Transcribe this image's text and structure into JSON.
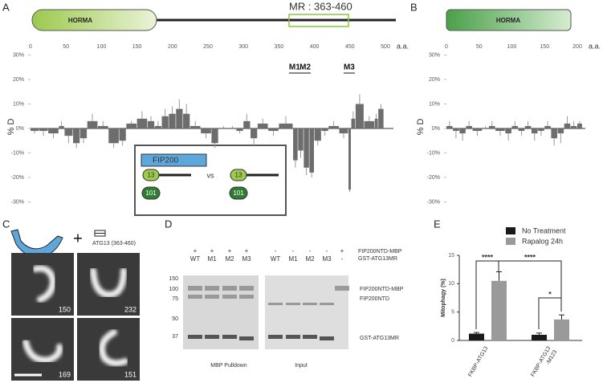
{
  "panel_a": {
    "label": "A",
    "domain": "HORMA",
    "region_label": "MR : 363-460",
    "xlim": [
      0,
      500
    ],
    "xticks": [
      0,
      50,
      100,
      150,
      200,
      250,
      300,
      350,
      400,
      450,
      500
    ],
    "x_unit": "a.a.",
    "ylim": [
      -30,
      30
    ],
    "yticks": [
      {
        "value": 30,
        "label": "30%"
      },
      {
        "value": 20,
        "label": "20%"
      },
      {
        "value": 10,
        "label": "10%"
      },
      {
        "value": 0,
        "label": "0%"
      },
      {
        "value": -10,
        "label": "-10%"
      },
      {
        "value": -20,
        "label": "-20%"
      },
      {
        "value": -30,
        "label": "-30%"
      }
    ],
    "y_label": "% D",
    "motifs": [
      "M1",
      "M2",
      "M3"
    ],
    "bar_starts": [
      0,
      12,
      25,
      40,
      48,
      60,
      70,
      80,
      95,
      110,
      125,
      135,
      150,
      165,
      175,
      185,
      195,
      205,
      215,
      225,
      240,
      255,
      265,
      280,
      290,
      300,
      310,
      320,
      335,
      350,
      370,
      377,
      385,
      393,
      400,
      410,
      420,
      435,
      448,
      452,
      458,
      470,
      485,
      490
    ],
    "values": [
      -1,
      -1,
      -2,
      1,
      -3,
      -6,
      -4,
      3,
      1,
      -6,
      -5,
      2,
      4,
      3,
      1,
      5,
      6,
      8,
      6,
      1,
      -2,
      -6,
      0,
      0,
      -1,
      3,
      -4,
      2,
      -1,
      2,
      -13,
      -9,
      -16,
      -18,
      -5,
      -1,
      1,
      -2,
      -25,
      4,
      10,
      3,
      4,
      8
    ],
    "errors": [
      1,
      2,
      2,
      2,
      3,
      2,
      2,
      3,
      2,
      2,
      2,
      1,
      3,
      2,
      2,
      3,
      3,
      4,
      4,
      2,
      2,
      2,
      1,
      1,
      1,
      3,
      3,
      2,
      2,
      3,
      3,
      3,
      3,
      2,
      2,
      2,
      2,
      2,
      1,
      3,
      4,
      2,
      2,
      2
    ],
    "inset": {
      "title": "FIP200",
      "pill_a": "13",
      "vs": "vs",
      "pill_b": "13",
      "circle_a": "101",
      "circle_b": "101"
    }
  },
  "panel_b": {
    "label": "B",
    "domain": "HORMA",
    "xlim": [
      0,
      200
    ],
    "xticks": [
      0,
      50,
      100,
      150,
      200
    ],
    "x_unit": "a.a.",
    "ylim": [
      -30,
      30
    ],
    "yticks": [
      {
        "value": 30,
        "label": "30%"
      },
      {
        "value": 20,
        "label": "20%"
      },
      {
        "value": 10,
        "label": "10%"
      },
      {
        "value": 0,
        "label": "0%"
      },
      {
        "value": -10,
        "label": "-10%"
      },
      {
        "value": -20,
        "label": "-20%"
      },
      {
        "value": -30,
        "label": "-30%"
      }
    ],
    "y_label": "% D",
    "bar_starts": [
      0,
      10,
      20,
      30,
      40,
      55,
      65,
      75,
      90,
      100,
      110,
      120,
      130,
      140,
      150,
      160,
      170,
      180,
      190,
      200
    ],
    "values": [
      1,
      -1,
      -2,
      1,
      -1,
      0,
      1,
      -1,
      -2,
      1,
      -1,
      1,
      -2,
      -1,
      1,
      -4,
      -2,
      2,
      1,
      2
    ],
    "errors": [
      2,
      3,
      3,
      2,
      2,
      1,
      2,
      2,
      3,
      2,
      2,
      2,
      3,
      2,
      2,
      3,
      4,
      3,
      2,
      1
    ]
  },
  "panel_c": {
    "label": "C",
    "plus": "+",
    "construct": "ATG13 (363-460)",
    "counts": [
      "150",
      "232",
      "169",
      "151"
    ]
  },
  "panel_d": {
    "label": "D",
    "row1": [
      "+",
      "+",
      "+",
      "+",
      "-",
      "-",
      "-",
      "-",
      "+"
    ],
    "row2": [
      "WT",
      "M1",
      "M2",
      "M3",
      "WT",
      "M1",
      "M2",
      "M3",
      "-"
    ],
    "row1_label": "FIP200NTD-MBP",
    "row2_label": "GST-ATG13MR",
    "markers": [
      "150",
      "100",
      "75",
      "50",
      "37"
    ],
    "bands": [
      "FIP200NTD-MBP",
      "FIP200NTD",
      "GST-ATG13MR"
    ],
    "gels": [
      "MBP Pulldown",
      "Input"
    ]
  },
  "panel_e": {
    "label": "E",
    "type": "bar",
    "y_label": "Mitophagy (%)",
    "categories": [
      "FKBP-ATG13",
      "FKBP-ATG13\n-M123"
    ],
    "series": [
      {
        "name": "No Treatment",
        "color": "#1a1a1a",
        "values": [
          1.2,
          1.0
        ],
        "errors": [
          0.2,
          0.3
        ]
      },
      {
        "name": "Rapalog 24h",
        "color": "#9a9a9a",
        "values": [
          10.5,
          3.7
        ],
        "errors": [
          1.6,
          0.8
        ]
      }
    ],
    "ylim": [
      0,
      15
    ],
    "yticks": [
      0,
      5,
      10,
      15
    ],
    "significance": [
      "****",
      "****",
      "*"
    ]
  }
}
